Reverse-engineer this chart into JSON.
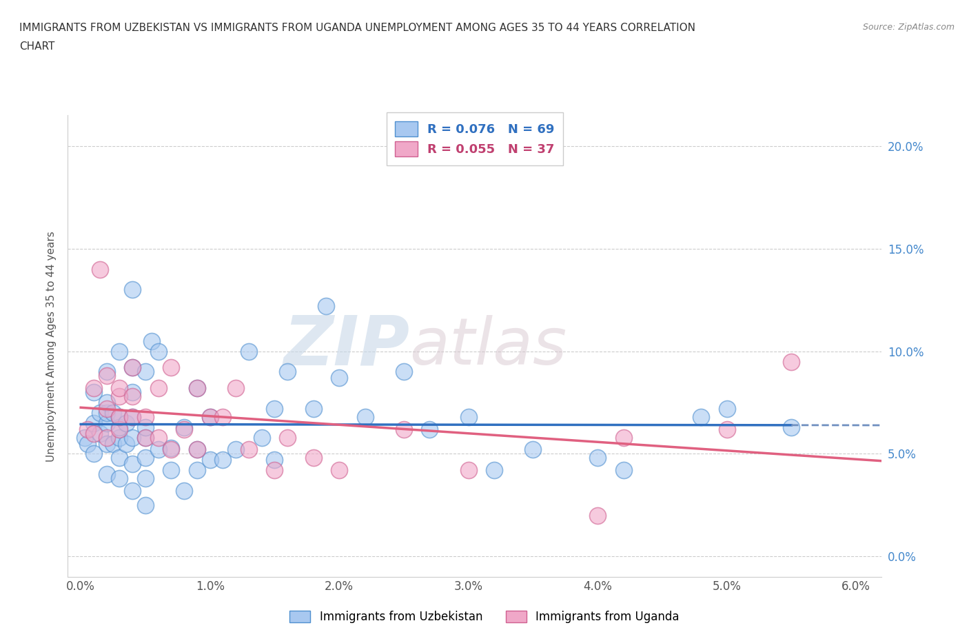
{
  "title_line1": "IMMIGRANTS FROM UZBEKISTAN VS IMMIGRANTS FROM UGANDA UNEMPLOYMENT AMONG AGES 35 TO 44 YEARS CORRELATION",
  "title_line2": "CHART",
  "source": "Source: ZipAtlas.com",
  "ylabel": "Unemployment Among Ages 35 to 44 years",
  "xlim": [
    -0.001,
    0.062
  ],
  "ylim": [
    -0.01,
    0.215
  ],
  "xticks": [
    0.0,
    0.01,
    0.02,
    0.03,
    0.04,
    0.05,
    0.06
  ],
  "xticklabels": [
    "0.0%",
    "1.0%",
    "2.0%",
    "3.0%",
    "4.0%",
    "5.0%",
    "6.0%"
  ],
  "yticks": [
    0.0,
    0.05,
    0.1,
    0.15,
    0.2
  ],
  "yticklabels": [
    "0.0%",
    "5.0%",
    "10.0%",
    "15.0%",
    "20.0%"
  ],
  "uzbekistan_color": "#a8c8f0",
  "uganda_color": "#f0a8c8",
  "uzbekistan_edge": "#5090d0",
  "uganda_edge": "#d06090",
  "trend_uzbekistan": "#3070c0",
  "trend_uzbekistan_dash": "#7090c0",
  "trend_uganda": "#e06080",
  "R_uzbekistan": 0.076,
  "N_uzbekistan": 69,
  "R_uganda": 0.055,
  "N_uganda": 37,
  "legend_label_uzbekistan": "Immigrants from Uzbekistan",
  "legend_label_uganda": "Immigrants from Uganda",
  "watermark_zip": "ZIP",
  "watermark_atlas": "atlas",
  "uzbekistan_x": [
    0.0003,
    0.0005,
    0.001,
    0.001,
    0.001,
    0.0015,
    0.0015,
    0.002,
    0.002,
    0.002,
    0.002,
    0.002,
    0.002,
    0.0025,
    0.0025,
    0.003,
    0.003,
    0.003,
    0.003,
    0.003,
    0.003,
    0.0035,
    0.0035,
    0.004,
    0.004,
    0.004,
    0.004,
    0.004,
    0.004,
    0.004,
    0.005,
    0.005,
    0.005,
    0.005,
    0.005,
    0.005,
    0.0055,
    0.006,
    0.006,
    0.007,
    0.007,
    0.008,
    0.008,
    0.009,
    0.009,
    0.009,
    0.01,
    0.01,
    0.011,
    0.012,
    0.013,
    0.014,
    0.015,
    0.015,
    0.016,
    0.018,
    0.019,
    0.02,
    0.022,
    0.025,
    0.027,
    0.03,
    0.032,
    0.035,
    0.04,
    0.042,
    0.048,
    0.05,
    0.055
  ],
  "uzbekistan_y": [
    0.058,
    0.055,
    0.065,
    0.05,
    0.08,
    0.06,
    0.07,
    0.04,
    0.055,
    0.065,
    0.07,
    0.075,
    0.09,
    0.055,
    0.07,
    0.038,
    0.048,
    0.058,
    0.063,
    0.068,
    0.1,
    0.055,
    0.065,
    0.032,
    0.045,
    0.058,
    0.068,
    0.08,
    0.092,
    0.13,
    0.025,
    0.038,
    0.048,
    0.058,
    0.063,
    0.09,
    0.105,
    0.052,
    0.1,
    0.042,
    0.053,
    0.032,
    0.063,
    0.042,
    0.052,
    0.082,
    0.047,
    0.068,
    0.047,
    0.052,
    0.1,
    0.058,
    0.047,
    0.072,
    0.09,
    0.072,
    0.122,
    0.087,
    0.068,
    0.09,
    0.062,
    0.068,
    0.042,
    0.052,
    0.048,
    0.042,
    0.068,
    0.072,
    0.063
  ],
  "uganda_x": [
    0.0005,
    0.001,
    0.001,
    0.0015,
    0.002,
    0.002,
    0.002,
    0.003,
    0.003,
    0.003,
    0.003,
    0.004,
    0.004,
    0.004,
    0.005,
    0.005,
    0.006,
    0.006,
    0.007,
    0.007,
    0.008,
    0.009,
    0.009,
    0.01,
    0.011,
    0.012,
    0.013,
    0.015,
    0.016,
    0.018,
    0.02,
    0.025,
    0.03,
    0.04,
    0.042,
    0.05,
    0.055
  ],
  "uganda_y": [
    0.062,
    0.06,
    0.082,
    0.14,
    0.058,
    0.072,
    0.088,
    0.062,
    0.068,
    0.078,
    0.082,
    0.068,
    0.078,
    0.092,
    0.058,
    0.068,
    0.058,
    0.082,
    0.052,
    0.092,
    0.062,
    0.052,
    0.082,
    0.068,
    0.068,
    0.082,
    0.052,
    0.042,
    0.058,
    0.048,
    0.042,
    0.062,
    0.042,
    0.02,
    0.058,
    0.062,
    0.095
  ]
}
